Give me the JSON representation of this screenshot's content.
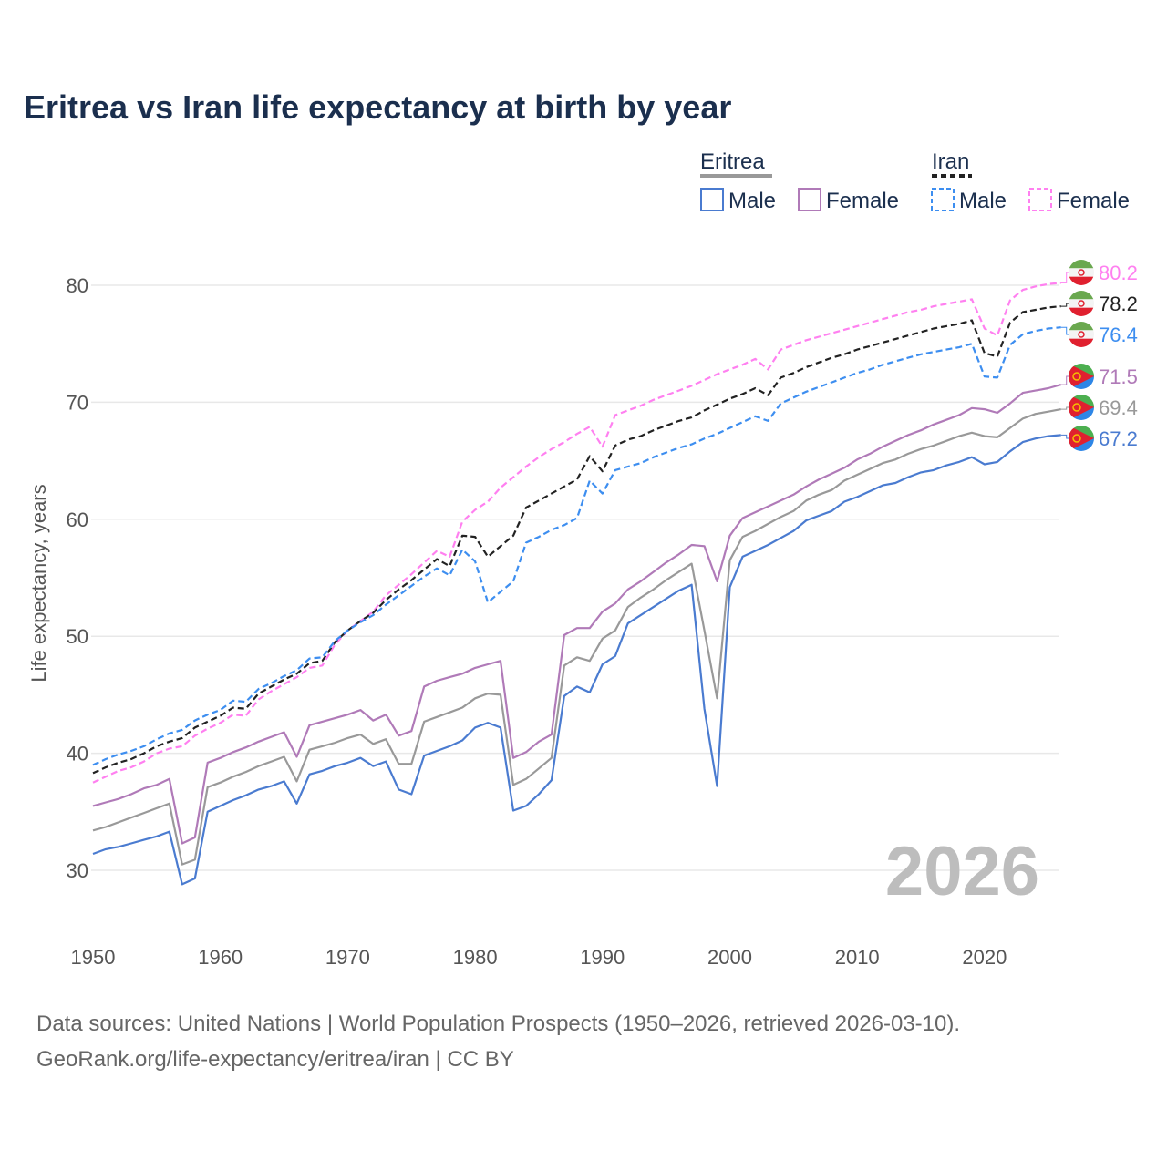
{
  "chart_data": {
    "type": "line",
    "title": "Eritrea vs Iran life expectancy at birth by year",
    "xlabel": "",
    "ylabel": "Life expectancy, years",
    "xlim": [
      1950,
      2026
    ],
    "ylim": [
      25,
      83
    ],
    "x_ticks": [
      1950,
      1960,
      1970,
      1980,
      1990,
      2000,
      2010,
      2020
    ],
    "y_ticks": [
      30,
      40,
      50,
      60,
      70,
      80
    ],
    "grid": true,
    "year_watermark": "2026",
    "legend": {
      "placement": "top-right",
      "groups": [
        {
          "label": "Eritrea",
          "items": [
            "Male",
            "Female"
          ]
        },
        {
          "label": "Iran",
          "items": [
            "Male",
            "Female"
          ]
        }
      ]
    },
    "x_start": 1950,
    "series": [
      {
        "name": "Iran Female",
        "country": "Iran",
        "sex": "Female",
        "color": "#ff80f0",
        "dashed": true,
        "end_label": "80.2",
        "values": [
          37.5,
          38.0,
          38.5,
          38.8,
          39.3,
          40.0,
          40.4,
          40.6,
          41.5,
          42.1,
          42.6,
          43.3,
          43.2,
          44.6,
          45.3,
          45.9,
          46.5,
          47.3,
          47.5,
          49.3,
          50.5,
          51.3,
          52.1,
          53.5,
          54.4,
          55.3,
          56.3,
          57.3,
          56.8,
          59.8,
          60.8,
          61.5,
          62.7,
          63.6,
          64.5,
          65.3,
          66.0,
          66.6,
          67.3,
          67.9,
          66.2,
          68.9,
          69.3,
          69.7,
          70.2,
          70.6,
          71.0,
          71.4,
          71.9,
          72.4,
          72.8,
          73.2,
          73.7,
          72.8,
          74.5,
          74.9,
          75.3,
          75.6,
          75.9,
          76.2,
          76.5,
          76.8,
          77.1,
          77.4,
          77.7,
          77.9,
          78.2,
          78.4,
          78.6,
          78.8,
          76.3,
          75.7,
          78.7,
          79.6,
          79.9,
          80.1,
          80.2
        ]
      },
      {
        "name": "Iran",
        "country": "Iran",
        "sex": "Both",
        "color": "#222222",
        "dashed": true,
        "end_label": "78.2",
        "values": [
          38.3,
          38.8,
          39.2,
          39.5,
          40.0,
          40.6,
          41.0,
          41.3,
          42.2,
          42.7,
          43.2,
          43.9,
          43.8,
          45.1,
          45.7,
          46.3,
          46.8,
          47.7,
          47.9,
          49.5,
          50.5,
          51.3,
          52.0,
          53.1,
          54.0,
          54.8,
          55.7,
          56.6,
          56.0,
          58.6,
          58.5,
          56.8,
          57.7,
          58.6,
          61.0,
          61.6,
          62.2,
          62.8,
          63.4,
          65.4,
          64.1,
          66.3,
          66.8,
          67.1,
          67.6,
          68.0,
          68.4,
          68.7,
          69.3,
          69.8,
          70.3,
          70.7,
          71.2,
          70.6,
          72.1,
          72.5,
          73.0,
          73.4,
          73.8,
          74.1,
          74.5,
          74.8,
          75.1,
          75.4,
          75.7,
          76.0,
          76.3,
          76.5,
          76.7,
          77.0,
          74.2,
          73.9,
          76.8,
          77.7,
          77.9,
          78.1,
          78.2
        ]
      },
      {
        "name": "Iran Male",
        "country": "Iran",
        "sex": "Male",
        "color": "#3d8ef0",
        "dashed": true,
        "end_label": "76.4",
        "values": [
          39.0,
          39.5,
          39.9,
          40.2,
          40.6,
          41.2,
          41.7,
          42.0,
          42.8,
          43.3,
          43.7,
          44.5,
          44.4,
          45.5,
          46.0,
          46.6,
          47.1,
          48.1,
          48.2,
          49.6,
          50.5,
          51.2,
          51.8,
          52.7,
          53.5,
          54.3,
          55.1,
          55.8,
          55.2,
          57.4,
          56.4,
          52.9,
          53.8,
          54.7,
          58.0,
          58.5,
          59.1,
          59.5,
          60.1,
          63.3,
          62.2,
          64.2,
          64.5,
          64.8,
          65.3,
          65.7,
          66.1,
          66.4,
          66.9,
          67.3,
          67.8,
          68.3,
          68.8,
          68.4,
          69.9,
          70.4,
          70.9,
          71.3,
          71.7,
          72.1,
          72.5,
          72.8,
          73.2,
          73.5,
          73.8,
          74.1,
          74.3,
          74.5,
          74.7,
          75.0,
          72.2,
          72.1,
          74.9,
          75.8,
          76.1,
          76.3,
          76.4
        ]
      },
      {
        "name": "Eritrea Female",
        "country": "Eritrea",
        "sex": "Female",
        "color": "#b07ab8",
        "dashed": false,
        "end_label": "71.5",
        "values": [
          35.5,
          35.8,
          36.1,
          36.5,
          37.0,
          37.3,
          37.8,
          32.3,
          32.8,
          39.2,
          39.6,
          40.1,
          40.5,
          41.0,
          41.4,
          41.8,
          39.7,
          42.4,
          42.7,
          43.0,
          43.3,
          43.7,
          42.8,
          43.3,
          41.5,
          41.9,
          45.7,
          46.2,
          46.5,
          46.8,
          47.3,
          47.6,
          47.9,
          39.6,
          40.1,
          41.0,
          41.6,
          50.1,
          50.7,
          50.7,
          52.1,
          52.8,
          54.0,
          54.7,
          55.5,
          56.3,
          57.0,
          57.8,
          57.7,
          54.7,
          58.6,
          60.1,
          60.6,
          61.1,
          61.6,
          62.1,
          62.8,
          63.4,
          63.9,
          64.4,
          65.1,
          65.6,
          66.2,
          66.7,
          67.2,
          67.6,
          68.1,
          68.5,
          68.9,
          69.5,
          69.4,
          69.1,
          69.9,
          70.8,
          71.0,
          71.2,
          71.5
        ]
      },
      {
        "name": "Eritrea",
        "country": "Eritrea",
        "sex": "Both",
        "color": "#999999",
        "dashed": false,
        "end_label": "69.4",
        "values": [
          33.4,
          33.7,
          34.1,
          34.5,
          34.9,
          35.3,
          35.7,
          30.5,
          30.9,
          37.1,
          37.5,
          38.0,
          38.4,
          38.9,
          39.3,
          39.7,
          37.6,
          40.3,
          40.6,
          40.9,
          41.3,
          41.6,
          40.8,
          41.2,
          39.1,
          39.1,
          42.7,
          43.1,
          43.5,
          43.9,
          44.7,
          45.1,
          45.0,
          37.3,
          37.8,
          38.7,
          39.6,
          47.5,
          48.2,
          47.9,
          49.8,
          50.5,
          52.5,
          53.3,
          54.0,
          54.8,
          55.5,
          56.2,
          50.5,
          44.7,
          56.5,
          58.5,
          59.0,
          59.6,
          60.2,
          60.7,
          61.6,
          62.1,
          62.5,
          63.3,
          63.8,
          64.3,
          64.8,
          65.1,
          65.6,
          66.0,
          66.3,
          66.7,
          67.1,
          67.4,
          67.1,
          67.0,
          67.8,
          68.6,
          69.0,
          69.2,
          69.4
        ]
      },
      {
        "name": "Eritrea Male",
        "country": "Eritrea",
        "sex": "Male",
        "color": "#4a7bd0",
        "dashed": false,
        "end_label": "67.2",
        "values": [
          31.4,
          31.8,
          32.0,
          32.3,
          32.6,
          32.9,
          33.3,
          28.8,
          29.3,
          35.0,
          35.5,
          36.0,
          36.4,
          36.9,
          37.2,
          37.6,
          35.7,
          38.2,
          38.5,
          38.9,
          39.2,
          39.6,
          38.9,
          39.3,
          36.9,
          36.5,
          39.8,
          40.2,
          40.6,
          41.1,
          42.2,
          42.6,
          42.2,
          35.1,
          35.5,
          36.5,
          37.7,
          44.9,
          45.7,
          45.2,
          47.6,
          48.3,
          51.1,
          51.8,
          52.5,
          53.2,
          53.9,
          54.4,
          43.8,
          37.2,
          54.2,
          56.8,
          57.3,
          57.8,
          58.4,
          59.0,
          59.9,
          60.3,
          60.7,
          61.5,
          61.9,
          62.4,
          62.9,
          63.1,
          63.6,
          64.0,
          64.2,
          64.6,
          64.9,
          65.3,
          64.7,
          64.9,
          65.8,
          66.6,
          66.9,
          67.1,
          67.2
        ]
      }
    ]
  },
  "source": {
    "line1": "Data sources: United Nations | World Population Prospects (1950–2026, retrieved 2026-03-10).",
    "line2": "GeoRank.org/life-expectancy/eritrea/iran | CC BY"
  }
}
